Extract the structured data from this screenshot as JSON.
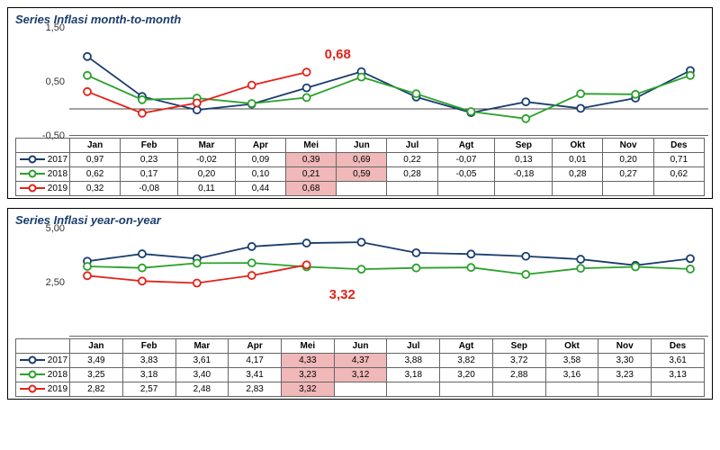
{
  "months": [
    "Jan",
    "Feb",
    "Mar",
    "Apr",
    "Mei",
    "Jun",
    "Jul",
    "Agt",
    "Sep",
    "Okt",
    "Nov",
    "Des"
  ],
  "colors": {
    "2017": "#1a3d6d",
    "2018": "#2aa12a",
    "2019": "#e2231a",
    "grid": "#999",
    "highlight_bg": "#f0b8b8",
    "title": "#1a3d6d"
  },
  "marker_radius": 4,
  "line_width": 1.8,
  "charts": [
    {
      "title": "Series Inflasi month-to-month",
      "ymin": -0.5,
      "ymax": 1.5,
      "yticks": [
        -0.5,
        0.5,
        1.5
      ],
      "zero_line": true,
      "callout": {
        "value": "0,68",
        "color": "#e2231a",
        "x_month": 4,
        "y_val": 1.15,
        "dx": 20
      },
      "highlight_cols": [
        4,
        5
      ],
      "series": [
        {
          "year": "2017",
          "color_key": "2017",
          "values": [
            0.97,
            0.23,
            -0.02,
            0.09,
            0.39,
            0.69,
            0.22,
            -0.07,
            0.13,
            0.01,
            0.2,
            0.71
          ]
        },
        {
          "year": "2018",
          "color_key": "2018",
          "values": [
            0.62,
            0.17,
            0.2,
            0.1,
            0.21,
            0.59,
            0.28,
            -0.05,
            -0.18,
            0.28,
            0.27,
            0.62
          ]
        },
        {
          "year": "2019",
          "color_key": "2019",
          "values": [
            0.32,
            -0.08,
            0.11,
            0.44,
            0.68,
            null,
            null,
            null,
            null,
            null,
            null,
            null
          ]
        }
      ]
    },
    {
      "title": "Series Inflasi year-on-year",
      "ymin": 0,
      "ymax": 5.0,
      "yticks": [
        2.5,
        5.0
      ],
      "zero_line": false,
      "callout": {
        "value": "3,32",
        "color": "#e2231a",
        "x_month": 4,
        "y_val": 2.3,
        "dx": 25
      },
      "highlight_cols": [
        4,
        5
      ],
      "series": [
        {
          "year": "2017",
          "color_key": "2017",
          "values": [
            3.49,
            3.83,
            3.61,
            4.17,
            4.33,
            4.37,
            3.88,
            3.82,
            3.72,
            3.58,
            3.3,
            3.61
          ]
        },
        {
          "year": "2018",
          "color_key": "2018",
          "values": [
            3.25,
            3.18,
            3.4,
            3.41,
            3.23,
            3.12,
            3.18,
            3.2,
            2.88,
            3.16,
            3.23,
            3.13
          ]
        },
        {
          "year": "2019",
          "color_key": "2019",
          "values": [
            2.82,
            2.57,
            2.48,
            2.83,
            3.32,
            null,
            null,
            null,
            null,
            null,
            null,
            null
          ]
        }
      ]
    }
  ]
}
